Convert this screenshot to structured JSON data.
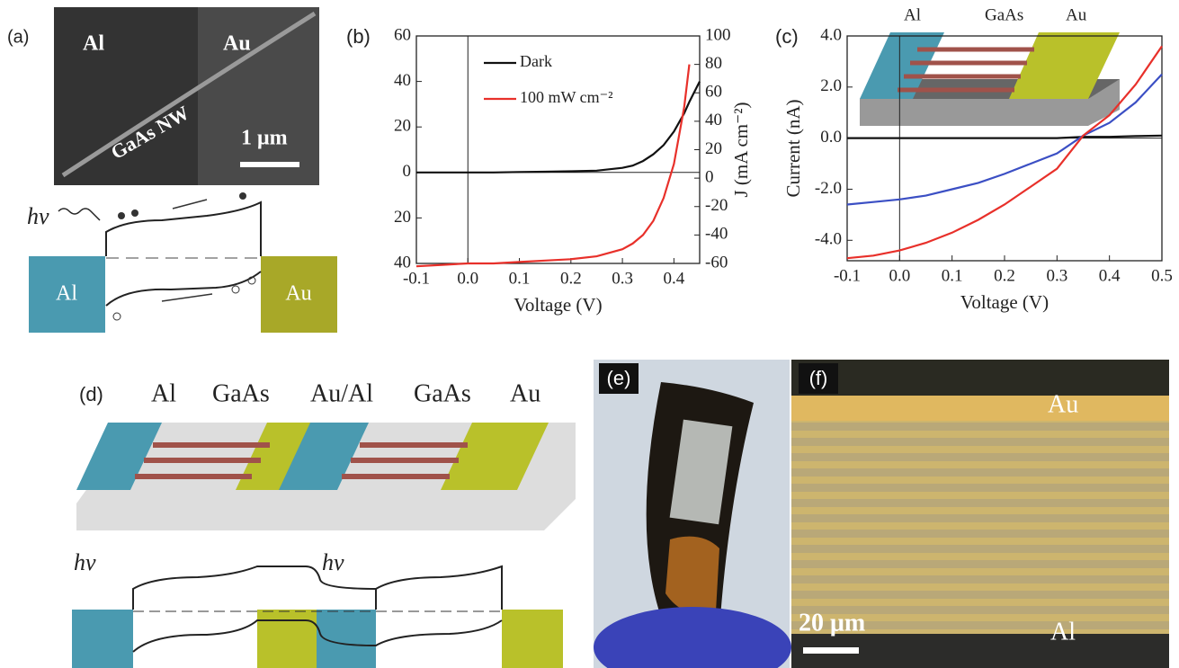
{
  "panels": {
    "a": {
      "label": "(a)",
      "sem_left": "Al",
      "sem_right": "Au",
      "nanowire": "GaAs NW",
      "scale": "1 μm",
      "photon": "hv",
      "left_contact": "Al",
      "right_contact": "Au"
    },
    "d": {
      "label": "(d)",
      "top_labels": [
        "Al",
        "GaAs",
        "Au/Al",
        "GaAs",
        "Au"
      ],
      "photon_left": "hv",
      "photon_right": "hv"
    },
    "e": {
      "label": "(e)"
    },
    "f": {
      "label": "(f)",
      "top": "Au",
      "scale": "20 μm",
      "bottom": "Al"
    }
  },
  "chart_data": [
    {
      "type": "line",
      "panel_label": "(b)",
      "xlabel": "Voltage (V)",
      "y2label": "J (mA cm⁻²)",
      "legend": "upper left",
      "x": [
        -0.1,
        -0.05,
        0,
        0.05,
        0.1,
        0.15,
        0.2,
        0.25,
        0.3,
        0.32,
        0.34,
        0.36,
        0.38,
        0.4,
        0.42,
        0.43,
        0.45
      ],
      "series": [
        {
          "name": "Dark",
          "color": "#111111",
          "axis": "y",
          "values": [
            0,
            0,
            0,
            0,
            0.2,
            0.3,
            0.5,
            0.8,
            2,
            3,
            5,
            8,
            12,
            18,
            26,
            31,
            40
          ]
        },
        {
          "name": "100 mW cm⁻²",
          "color": "#e8302a",
          "axis": "y2",
          "values": [
            -62,
            -61,
            -60,
            -60,
            -59,
            -58,
            -57,
            -55,
            -50,
            -46,
            -40,
            -30,
            -14,
            10,
            50,
            80,
            null
          ]
        }
      ],
      "xlim": [
        -0.1,
        0.45
      ],
      "xticks": [
        -0.1,
        {
          "value": 0,
          "label": "0.0"
        },
        0.1,
        0.2,
        0.3,
        0.4
      ],
      "ylim": [
        -40,
        60
      ],
      "yticks": [
        60,
        40,
        20,
        0,
        {
          "value": -20,
          "label": "20"
        },
        {
          "value": -40,
          "label": "40"
        }
      ],
      "y2lim": [
        -60,
        100
      ],
      "y2ticks": [
        100,
        80,
        60,
        40,
        20,
        0,
        -20,
        -40,
        -60
      ]
    },
    {
      "type": "line",
      "panel_label": "(c)",
      "xlabel": "Voltage (V)",
      "ylabel": "Current (nA)",
      "inset_labels": [
        "Al",
        "GaAs",
        "Au"
      ],
      "x": [
        -0.1,
        -0.05,
        0,
        0.05,
        0.1,
        0.15,
        0.2,
        0.25,
        0.3,
        0.35,
        0.4,
        0.45,
        0.5
      ],
      "series": [
        {
          "color": "#111111",
          "values": [
            0,
            0,
            0,
            0,
            0,
            0,
            0,
            0,
            0,
            0.05,
            0.05,
            0.08,
            0.1
          ]
        },
        {
          "color": "#3b4fc4",
          "values": [
            -2.6,
            -2.5,
            -2.4,
            -2.25,
            -2.0,
            -1.75,
            -1.4,
            -1.0,
            -0.6,
            0.1,
            0.6,
            1.4,
            2.5
          ]
        },
        {
          "color": "#e8302a",
          "values": [
            -4.7,
            -4.6,
            -4.4,
            -4.1,
            -3.7,
            -3.2,
            -2.6,
            -1.9,
            -1.2,
            0.1,
            0.9,
            2.1,
            3.6
          ]
        }
      ],
      "xlim": [
        -0.1,
        0.5
      ],
      "xticks": [
        -0.1,
        {
          "value": 0,
          "label": "0.0"
        },
        0.1,
        0.2,
        0.3,
        0.4,
        0.5
      ],
      "ylim": [
        -4.8,
        4.0
      ],
      "yticks": [
        {
          "value": 4,
          "label": "4.0"
        },
        {
          "value": 2,
          "label": "2.0"
        },
        {
          "value": 0,
          "label": "0.0"
        },
        {
          "value": -2,
          "label": "-2.0"
        },
        {
          "value": -4,
          "label": "-4.0"
        }
      ]
    }
  ]
}
